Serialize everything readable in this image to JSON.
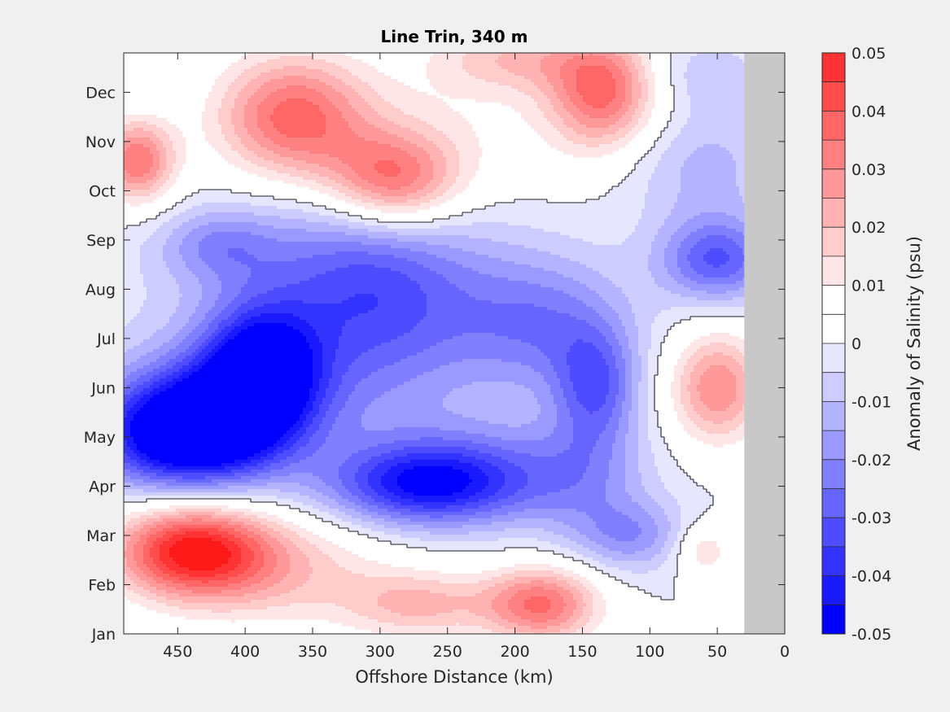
{
  "chart_data": {
    "type": "heatmap",
    "title": "Line Trin, 340 m",
    "xlabel": "Offshore Distance (km)",
    "ylabel": "",
    "x_axis": {
      "range": [
        490,
        0
      ],
      "reversed": true,
      "ticks": [
        "450",
        "400",
        "350",
        "300",
        "250",
        "200",
        "150",
        "100",
        "50",
        "0"
      ],
      "tick_values": [
        450,
        400,
        350,
        300,
        250,
        200,
        150,
        100,
        50,
        0
      ]
    },
    "y_axis": {
      "range": [
        1,
        12.8
      ],
      "ticks": [
        "Jan",
        "Feb",
        "Mar",
        "Apr",
        "May",
        "Jun",
        "Jul",
        "Aug",
        "Sep",
        "Oct",
        "Nov",
        "Dec"
      ]
    },
    "no_data_region": {
      "x_range": [
        30,
        0
      ],
      "color": "#c8c8c8"
    },
    "zero_contour": true,
    "grid": false,
    "colorbar": {
      "label": "Anomaly of Salinity (psu)",
      "location": "right",
      "range": [
        -0.05,
        0.05
      ],
      "ticks": [
        "-0.05",
        "-0.04",
        "-0.03",
        "-0.02",
        "-0.01",
        "0",
        "0.01",
        "0.02",
        "0.03",
        "0.04",
        "0.05"
      ],
      "tick_values": [
        -0.05,
        -0.04,
        -0.03,
        -0.02,
        -0.01,
        0,
        0.01,
        0.02,
        0.03,
        0.04,
        0.05
      ],
      "levels": [
        -0.05,
        -0.045,
        -0.04,
        -0.035,
        -0.03,
        -0.025,
        -0.02,
        -0.015,
        -0.01,
        -0.005,
        0,
        0.005,
        0.01,
        0.015,
        0.02,
        0.025,
        0.03,
        0.035,
        0.04,
        0.045,
        0.05
      ],
      "colormap": [
        "#0000ff",
        "#1a1aff",
        "#3333ff",
        "#4d4dff",
        "#6666ff",
        "#8080ff",
        "#9999ff",
        "#b3b3ff",
        "#ccccff",
        "#e6e6ff",
        "#ffffff",
        "#ffffff",
        "#ffe6e6",
        "#ffcccc",
        "#ffb3b3",
        "#ff9999",
        "#ff8080",
        "#ff6666",
        "#ff4d4d",
        "#ff3333",
        "#ff1a1a"
      ]
    },
    "features": [
      {
        "x": 445,
        "y": 5.0,
        "value": -0.048,
        "sx": 45,
        "sy": 0.75
      },
      {
        "x": 388,
        "y": 6.4,
        "value": -0.043,
        "sx": 30,
        "sy": 0.9
      },
      {
        "x": 420,
        "y": 5.6,
        "value": -0.03,
        "sx": 55,
        "sy": 0.9
      },
      {
        "x": 300,
        "y": 7.6,
        "value": -0.025,
        "sx": 55,
        "sy": 1.6
      },
      {
        "x": 270,
        "y": 4.0,
        "value": -0.032,
        "sx": 50,
        "sy": 0.55
      },
      {
        "x": 240,
        "y": 4.3,
        "value": -0.02,
        "sx": 55,
        "sy": 0.75
      },
      {
        "x": 180,
        "y": 7.3,
        "value": -0.022,
        "sx": 45,
        "sy": 1.0
      },
      {
        "x": 140,
        "y": 6.0,
        "value": -0.026,
        "sx": 22,
        "sy": 0.85
      },
      {
        "x": 50,
        "y": 8.6,
        "value": -0.03,
        "sx": 30,
        "sy": 0.6
      },
      {
        "x": 150,
        "y": 4.2,
        "value": -0.015,
        "sx": 35,
        "sy": 0.8
      },
      {
        "x": 115,
        "y": 3.0,
        "value": -0.018,
        "sx": 30,
        "sy": 0.5
      },
      {
        "x": 420,
        "y": 8.9,
        "value": -0.015,
        "sx": 30,
        "sy": 0.5
      },
      {
        "x": 350,
        "y": 8.2,
        "value": -0.012,
        "sx": 80,
        "sy": 1.2
      },
      {
        "x": 60,
        "y": 10.5,
        "value": -0.012,
        "sx": 40,
        "sy": 0.9
      },
      {
        "x": 60,
        "y": 12.4,
        "value": -0.008,
        "sx": 30,
        "sy": 0.5
      },
      {
        "x": 440,
        "y": 2.7,
        "value": 0.047,
        "sx": 40,
        "sy": 0.65
      },
      {
        "x": 380,
        "y": 2.3,
        "value": 0.018,
        "sx": 60,
        "sy": 0.8
      },
      {
        "x": 180,
        "y": 1.6,
        "value": 0.035,
        "sx": 30,
        "sy": 0.55
      },
      {
        "x": 270,
        "y": 1.6,
        "value": 0.02,
        "sx": 40,
        "sy": 0.5
      },
      {
        "x": 365,
        "y": 11.5,
        "value": 0.036,
        "sx": 40,
        "sy": 0.9
      },
      {
        "x": 290,
        "y": 10.2,
        "value": 0.036,
        "sx": 35,
        "sy": 0.7
      },
      {
        "x": 480,
        "y": 10.6,
        "value": 0.035,
        "sx": 20,
        "sy": 0.6
      },
      {
        "x": 135,
        "y": 12.0,
        "value": 0.035,
        "sx": 28,
        "sy": 0.8
      },
      {
        "x": 50,
        "y": 6.0,
        "value": 0.03,
        "sx": 25,
        "sy": 0.8
      },
      {
        "x": 200,
        "y": 12.7,
        "value": 0.018,
        "sx": 45,
        "sy": 0.5
      },
      {
        "x": 250,
        "y": 11.2,
        "value": 0.008,
        "sx": 80,
        "sy": 1.0
      },
      {
        "x": 60,
        "y": 2.7,
        "value": 0.015,
        "sx": 15,
        "sy": 0.4
      }
    ]
  }
}
